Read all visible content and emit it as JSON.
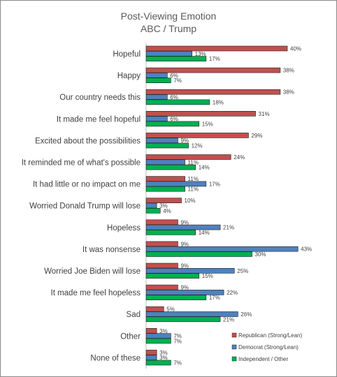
{
  "chart_data": {
    "type": "bar",
    "orientation": "horizontal",
    "title": "Post-Viewing Emotion",
    "subtitle": "ABC / Trump",
    "xlabel": "",
    "ylabel": "",
    "xlim": [
      0,
      45
    ],
    "grid": false,
    "legend_position": "bottom-right",
    "value_suffix": "%",
    "categories": [
      "Hopeful",
      "Happy",
      "Our country needs this",
      "It made me feel hopeful",
      "Excited about the possibilities",
      "It reminded me of what's possible",
      "It had little or no impact on me",
      "Worried Donald Trump will lose",
      "Hopeless",
      "It was nonsense",
      "Worried Joe Biden will lose",
      "It made me feel hopeless",
      "Sad",
      "Other",
      "None of these"
    ],
    "series": [
      {
        "name": "Republican (Strong/Lean)",
        "color": "#c0504d",
        "values": [
          40,
          38,
          38,
          31,
          29,
          24,
          11,
          10,
          9,
          9,
          9,
          9,
          5,
          3,
          3
        ]
      },
      {
        "name": "Democrat (Strong/Lean)",
        "color": "#4f81bd",
        "values": [
          13,
          6,
          6,
          6,
          9,
          11,
          17,
          3,
          21,
          43,
          25,
          22,
          26,
          7,
          3
        ]
      },
      {
        "name": "Independent / Other",
        "color": "#00b050",
        "values": [
          17,
          7,
          18,
          15,
          12,
          14,
          11,
          4,
          14,
          30,
          15,
          17,
          21,
          7,
          7
        ]
      }
    ]
  }
}
